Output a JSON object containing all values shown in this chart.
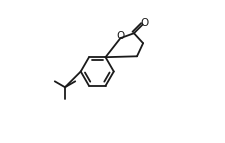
{
  "background_color": "#ffffff",
  "line_color": "#1a1a1a",
  "line_width": 1.3,
  "fig_width": 2.26,
  "fig_height": 1.43,
  "dpi": 100,
  "xlim": [
    -0.15,
    0.95
  ],
  "ylim": [
    0.05,
    0.95
  ]
}
